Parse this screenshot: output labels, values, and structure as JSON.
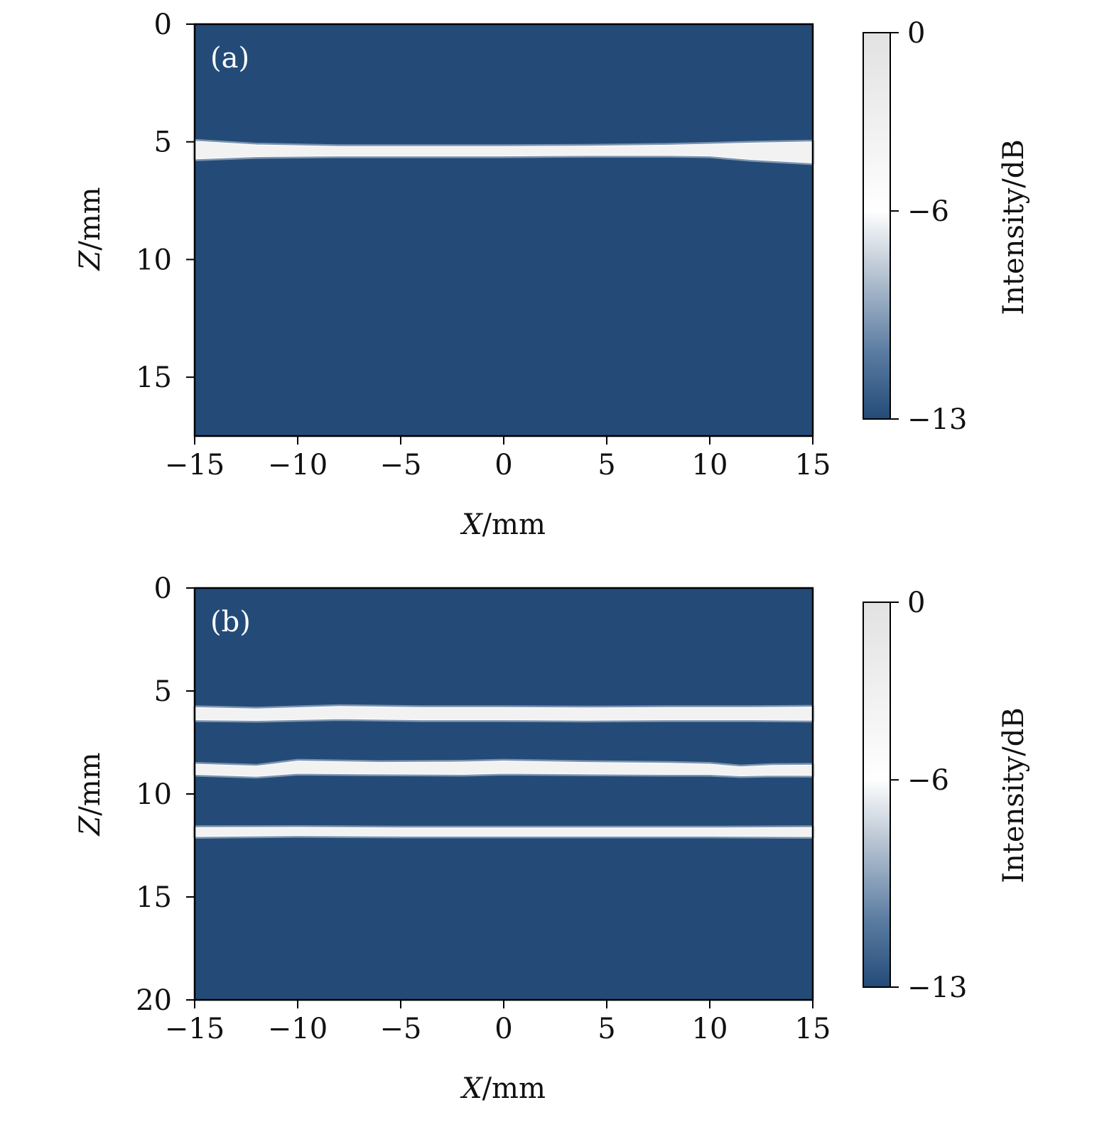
{
  "colors": {
    "background_low": "#244b78",
    "high": "#e4e4e4",
    "mid": "#ffffff"
  },
  "chart_data": [
    {
      "type": "heatmap",
      "panel_label": "(a)",
      "xlabel_var": "X",
      "xlabel_unit": "/mm",
      "ylabel_var": "Z",
      "ylabel_unit": "/mm",
      "xlim": [
        -15,
        15
      ],
      "ylim": [
        0,
        17.5
      ],
      "x_ticks": [
        -15,
        -10,
        -5,
        0,
        5,
        10,
        15
      ],
      "x_tick_labels": [
        "−15",
        "−10",
        "−5",
        "0",
        "5",
        "10",
        "15"
      ],
      "y_ticks": [
        0,
        5,
        10,
        15
      ],
      "y_tick_labels": [
        "0",
        "5",
        "10",
        "15"
      ],
      "bands": [
        {
          "x": [
            -15,
            -12,
            -8,
            -4,
            0,
            4,
            8,
            10,
            12,
            15
          ],
          "z_center": [
            5.35,
            5.38,
            5.4,
            5.4,
            5.4,
            5.38,
            5.36,
            5.35,
            5.4,
            5.45
          ],
          "half_width": [
            0.38,
            0.25,
            0.2,
            0.2,
            0.2,
            0.2,
            0.22,
            0.25,
            0.35,
            0.45
          ]
        }
      ],
      "colorbar": {
        "label": "Intensity/dB",
        "range": [
          -13,
          0
        ],
        "ticks": [
          0,
          -6,
          -13
        ],
        "tick_labels": [
          "0",
          "−6",
          "−13"
        ]
      }
    },
    {
      "type": "heatmap",
      "panel_label": "(b)",
      "xlabel_var": "X",
      "xlabel_unit": "/mm",
      "ylabel_var": "Z",
      "ylabel_unit": "/mm",
      "xlim": [
        -15,
        15
      ],
      "ylim": [
        0,
        20
      ],
      "x_ticks": [
        -15,
        -10,
        -5,
        0,
        5,
        10,
        15
      ],
      "x_tick_labels": [
        "−15",
        "−10",
        "−5",
        "0",
        "5",
        "10",
        "15"
      ],
      "y_ticks": [
        0,
        5,
        10,
        15,
        20
      ],
      "y_tick_labels": [
        "0",
        "5",
        "10",
        "15",
        "20"
      ],
      "bands": [
        {
          "x": [
            -15,
            -12,
            -8,
            -4,
            0,
            4,
            8,
            12,
            15
          ],
          "z_center": [
            6.1,
            6.15,
            6.05,
            6.1,
            6.1,
            6.12,
            6.1,
            6.1,
            6.1
          ],
          "half_width": [
            0.3,
            0.28,
            0.3,
            0.3,
            0.3,
            0.3,
            0.3,
            0.3,
            0.32
          ]
        },
        {
          "x": [
            -15,
            -12,
            -10,
            -6,
            -2,
            0,
            4,
            8,
            10,
            11.5,
            13,
            15
          ],
          "z_center": [
            8.8,
            8.9,
            8.7,
            8.75,
            8.75,
            8.7,
            8.75,
            8.78,
            8.8,
            8.9,
            8.85,
            8.85
          ],
          "half_width": [
            0.25,
            0.25,
            0.3,
            0.28,
            0.3,
            0.3,
            0.28,
            0.27,
            0.25,
            0.22,
            0.24,
            0.25
          ]
        },
        {
          "x": [
            -15,
            -10,
            -5,
            0,
            5,
            10,
            15
          ],
          "z_center": [
            11.85,
            11.82,
            11.85,
            11.85,
            11.85,
            11.85,
            11.85
          ],
          "half_width": [
            0.22,
            0.2,
            0.2,
            0.2,
            0.2,
            0.2,
            0.22
          ]
        }
      ],
      "colorbar": {
        "label": "Intensity/dB",
        "range": [
          -13,
          0
        ],
        "ticks": [
          0,
          -6,
          -13
        ],
        "tick_labels": [
          "0",
          "−6",
          "−13"
        ]
      }
    }
  ]
}
